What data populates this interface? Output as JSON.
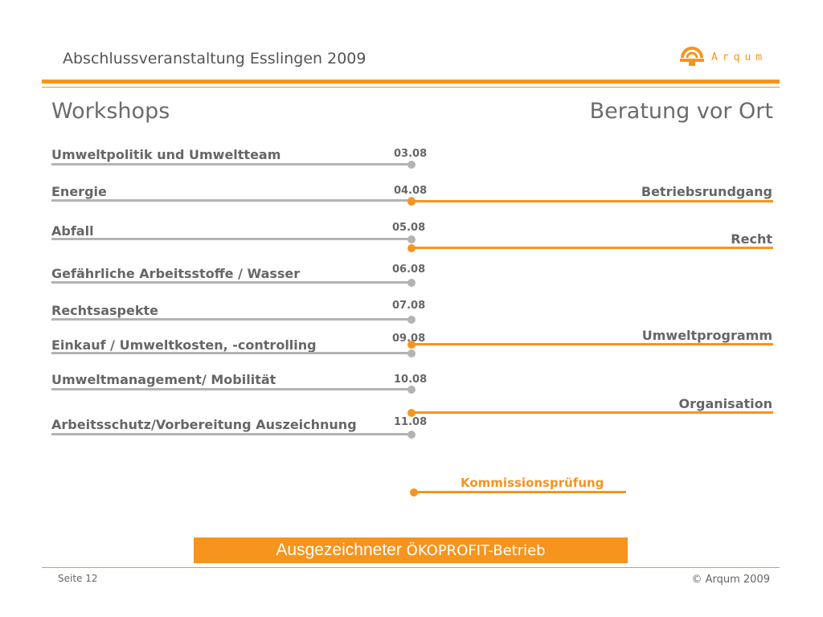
{
  "header": {
    "title": "Abschlussveranstaltung Esslingen 2009"
  },
  "logo": {
    "text": "Arqum",
    "icon": "arqum-logo-icon"
  },
  "sections": {
    "left": "Workshops",
    "right": "Beratung vor Ort"
  },
  "workshops": [
    {
      "label": "Umweltpolitik und Umweltteam",
      "date": "03.08"
    },
    {
      "label": "Energie",
      "date": "04.08"
    },
    {
      "label": "Abfall",
      "date": "05.08"
    },
    {
      "label": "Gefährliche Arbeitsstoffe / Wasser",
      "date": "06.08"
    },
    {
      "label": "Rechtsaspekte",
      "date": "07.08"
    },
    {
      "label": "Einkauf / Umweltkosten, -controlling",
      "date": "09.08"
    },
    {
      "label": "Umweltmanagement/ Mobilität",
      "date": "10.08"
    },
    {
      "label": "Arbeitsschutz/Vorbereitung Auszeichnung",
      "date": "11.08"
    }
  ],
  "consultations": [
    {
      "label": "Betriebsrundgang"
    },
    {
      "label": "Recht"
    },
    {
      "label": "Umweltprogramm"
    },
    {
      "label": "Organisation"
    }
  ],
  "final_step": {
    "label": "Kommissionsprüfung"
  },
  "banner": {
    "main": "Ausgezeichneter",
    "sub": "ÖKOPROFIT-Betrieb"
  },
  "footer": {
    "page": "Seite 12",
    "copyright": "© Arqum 2009"
  },
  "colors": {
    "accent": "#f7941d",
    "line_gray": "#b3b3b3",
    "text": "#666666"
  }
}
